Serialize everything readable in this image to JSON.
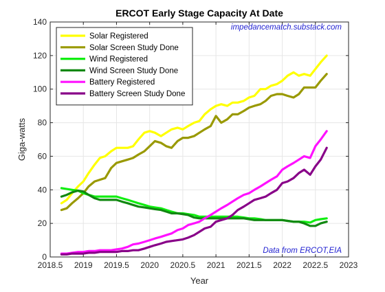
{
  "chart_data": {
    "type": "line",
    "title": "ERCOT Early Stage Capacity At Date",
    "xlabel": "Year",
    "ylabel": "Giga-watts",
    "xlim": [
      2018.5,
      2023
    ],
    "ylim": [
      0,
      140
    ],
    "xticks": [
      "2018.5",
      "2019",
      "2019.5",
      "2020",
      "2020.5",
      "2021",
      "2021.5",
      "2022",
      "2022.5",
      "2023"
    ],
    "yticks": [
      "0",
      "20",
      "40",
      "60",
      "80",
      "100",
      "120",
      "140"
    ],
    "grid": true,
    "box": true,
    "legend_position": "top-left",
    "annotations": {
      "top_right": "impedancematch.substack.com",
      "bottom_right": "Data from ERCOT,EIA"
    },
    "colors": {
      "annotation": "#1f1fd0",
      "grid": "#e6e6e6",
      "axis": "#262626"
    },
    "series": [
      {
        "name": "Solar Registered",
        "color": "#ffff00",
        "x": [
          2018.67,
          2018.75,
          2018.83,
          2018.92,
          2019.0,
          2019.08,
          2019.17,
          2019.25,
          2019.33,
          2019.42,
          2019.5,
          2019.58,
          2019.67,
          2019.75,
          2019.83,
          2019.92,
          2020.0,
          2020.08,
          2020.17,
          2020.25,
          2020.33,
          2020.42,
          2020.5,
          2020.58,
          2020.67,
          2020.75,
          2020.83,
          2020.92,
          2021.0,
          2021.08,
          2021.17,
          2021.25,
          2021.33,
          2021.42,
          2021.5,
          2021.58,
          2021.67,
          2021.75,
          2021.83,
          2021.92,
          2022.0,
          2022.08,
          2022.17,
          2022.25,
          2022.33,
          2022.42,
          2022.5,
          2022.58,
          2022.67
        ],
        "y": [
          32,
          34,
          38,
          42,
          45,
          50,
          55,
          59,
          60,
          63,
          65,
          65,
          65,
          66,
          70,
          74,
          75,
          74,
          72,
          74,
          76,
          77,
          76,
          78,
          80,
          81,
          85,
          88,
          90,
          91,
          90,
          92,
          92,
          93,
          95,
          96,
          100,
          100,
          102,
          103,
          105,
          108,
          110,
          108,
          109,
          108,
          112,
          116,
          120
        ]
      },
      {
        "name": "Solar Screen Study Done",
        "color": "#999900",
        "x": [
          2018.67,
          2018.75,
          2018.83,
          2018.92,
          2019.0,
          2019.08,
          2019.17,
          2019.25,
          2019.33,
          2019.42,
          2019.5,
          2019.58,
          2019.67,
          2019.75,
          2019.83,
          2019.92,
          2020.0,
          2020.08,
          2020.17,
          2020.25,
          2020.33,
          2020.42,
          2020.5,
          2020.58,
          2020.67,
          2020.75,
          2020.83,
          2020.92,
          2021.0,
          2021.08,
          2021.17,
          2021.25,
          2021.33,
          2021.42,
          2021.5,
          2021.58,
          2021.67,
          2021.75,
          2021.83,
          2021.92,
          2022.0,
          2022.08,
          2022.17,
          2022.25,
          2022.33,
          2022.42,
          2022.5,
          2022.58,
          2022.67
        ],
        "y": [
          28,
          29,
          32,
          35,
          38,
          42,
          45,
          46,
          47,
          53,
          56,
          57,
          58,
          59,
          61,
          63,
          66,
          69,
          68,
          66,
          65,
          69,
          71,
          71,
          72,
          74,
          76,
          78,
          84,
          80,
          82,
          85,
          85,
          87,
          89,
          90,
          91,
          93,
          96,
          97,
          97,
          96,
          95,
          97,
          101,
          101,
          101,
          105,
          109
        ]
      },
      {
        "name": "Wind Registered",
        "color": "#11ee11",
        "x": [
          2018.67,
          2018.75,
          2018.83,
          2018.92,
          2019.0,
          2019.08,
          2019.17,
          2019.25,
          2019.33,
          2019.42,
          2019.5,
          2019.58,
          2019.67,
          2019.75,
          2019.83,
          2019.92,
          2020.0,
          2020.08,
          2020.17,
          2020.25,
          2020.33,
          2020.42,
          2020.5,
          2020.58,
          2020.67,
          2020.75,
          2020.83,
          2020.92,
          2021.0,
          2021.08,
          2021.17,
          2021.25,
          2021.33,
          2021.42,
          2021.5,
          2021.58,
          2021.67,
          2021.75,
          2021.83,
          2021.92,
          2022.0,
          2022.08,
          2022.17,
          2022.25,
          2022.33,
          2022.42,
          2022.5,
          2022.58,
          2022.67
        ],
        "y": [
          41,
          40.5,
          40,
          39.5,
          38,
          37,
          36,
          36,
          36,
          36,
          36,
          35,
          34,
          33,
          32,
          31,
          30,
          29.5,
          29,
          28,
          27,
          26,
          26,
          25.5,
          25,
          24,
          24,
          24,
          24,
          24,
          24,
          24,
          24,
          23.5,
          23,
          23,
          22.5,
          22,
          22,
          22,
          22,
          21.5,
          21,
          21,
          21,
          20.5,
          22,
          22.5,
          23
        ]
      },
      {
        "name": "Wind Screen Study Done",
        "color": "#118811",
        "x": [
          2018.67,
          2018.75,
          2018.83,
          2018.92,
          2019.0,
          2019.08,
          2019.17,
          2019.25,
          2019.33,
          2019.42,
          2019.5,
          2019.58,
          2019.67,
          2019.75,
          2019.83,
          2019.92,
          2020.0,
          2020.08,
          2020.17,
          2020.25,
          2020.33,
          2020.42,
          2020.5,
          2020.58,
          2020.67,
          2020.75,
          2020.83,
          2020.92,
          2021.0,
          2021.08,
          2021.17,
          2021.25,
          2021.33,
          2021.42,
          2021.5,
          2021.58,
          2021.67,
          2021.75,
          2021.83,
          2021.92,
          2022.0,
          2022.08,
          2022.17,
          2022.25,
          2022.33,
          2022.42,
          2022.5,
          2022.58,
          2022.67
        ],
        "y": [
          36,
          37,
          38.5,
          39.5,
          39,
          37,
          35,
          34,
          34,
          34,
          34,
          33,
          32,
          31,
          30,
          29.5,
          29,
          28.5,
          28,
          27,
          26,
          26,
          25.5,
          25,
          23.5,
          23,
          23,
          23,
          23,
          23,
          23,
          23,
          23,
          23,
          22.5,
          22,
          22,
          22,
          22,
          22,
          22,
          21.5,
          21,
          21,
          20,
          18.5,
          18.5,
          20,
          21
        ]
      },
      {
        "name": "Battery Registered",
        "color": "#ff11ff",
        "x": [
          2018.67,
          2018.75,
          2018.83,
          2018.92,
          2019.0,
          2019.08,
          2019.17,
          2019.25,
          2019.33,
          2019.42,
          2019.5,
          2019.58,
          2019.67,
          2019.75,
          2019.83,
          2019.92,
          2020.0,
          2020.08,
          2020.17,
          2020.25,
          2020.33,
          2020.42,
          2020.5,
          2020.58,
          2020.67,
          2020.75,
          2020.83,
          2020.92,
          2021.0,
          2021.08,
          2021.17,
          2021.25,
          2021.33,
          2021.42,
          2021.5,
          2021.58,
          2021.67,
          2021.75,
          2021.83,
          2021.92,
          2022.0,
          2022.08,
          2022.17,
          2022.25,
          2022.33,
          2022.42,
          2022.5,
          2022.58,
          2022.67
        ],
        "y": [
          2,
          2,
          2.5,
          3,
          3,
          3.5,
          3.5,
          4,
          4,
          4,
          4.5,
          5,
          6,
          7.5,
          8,
          9,
          10,
          11,
          12,
          13,
          14,
          16,
          17,
          19,
          20,
          21,
          23,
          25,
          27,
          29,
          31,
          33,
          35,
          37,
          38,
          40,
          42,
          44,
          46,
          48,
          52,
          54,
          56,
          58,
          60,
          59,
          66,
          70,
          75
        ]
      },
      {
        "name": "Battery Screen Study Done",
        "color": "#880088",
        "x": [
          2018.67,
          2018.75,
          2018.83,
          2018.92,
          2019.0,
          2019.08,
          2019.17,
          2019.25,
          2019.33,
          2019.42,
          2019.5,
          2019.58,
          2019.67,
          2019.75,
          2019.83,
          2019.92,
          2020.0,
          2020.08,
          2020.17,
          2020.25,
          2020.33,
          2020.42,
          2020.5,
          2020.58,
          2020.67,
          2020.75,
          2020.83,
          2020.92,
          2021.0,
          2021.08,
          2021.17,
          2021.25,
          2021.33,
          2021.42,
          2021.5,
          2021.58,
          2021.67,
          2021.75,
          2021.83,
          2021.92,
          2022.0,
          2022.08,
          2022.17,
          2022.25,
          2022.33,
          2022.42,
          2022.5,
          2022.58,
          2022.67
        ],
        "y": [
          1.5,
          1.5,
          2,
          2,
          2,
          2.5,
          2.5,
          3,
          3,
          3,
          3,
          3.5,
          3.5,
          4,
          4,
          5,
          6,
          7,
          8,
          9,
          9.5,
          10,
          10.5,
          11.5,
          13,
          15,
          17,
          18,
          21,
          22,
          23,
          25,
          28,
          30,
          32,
          34,
          35,
          36,
          38,
          40,
          44,
          45,
          47,
          50,
          52,
          49,
          54,
          58,
          65
        ]
      }
    ]
  }
}
